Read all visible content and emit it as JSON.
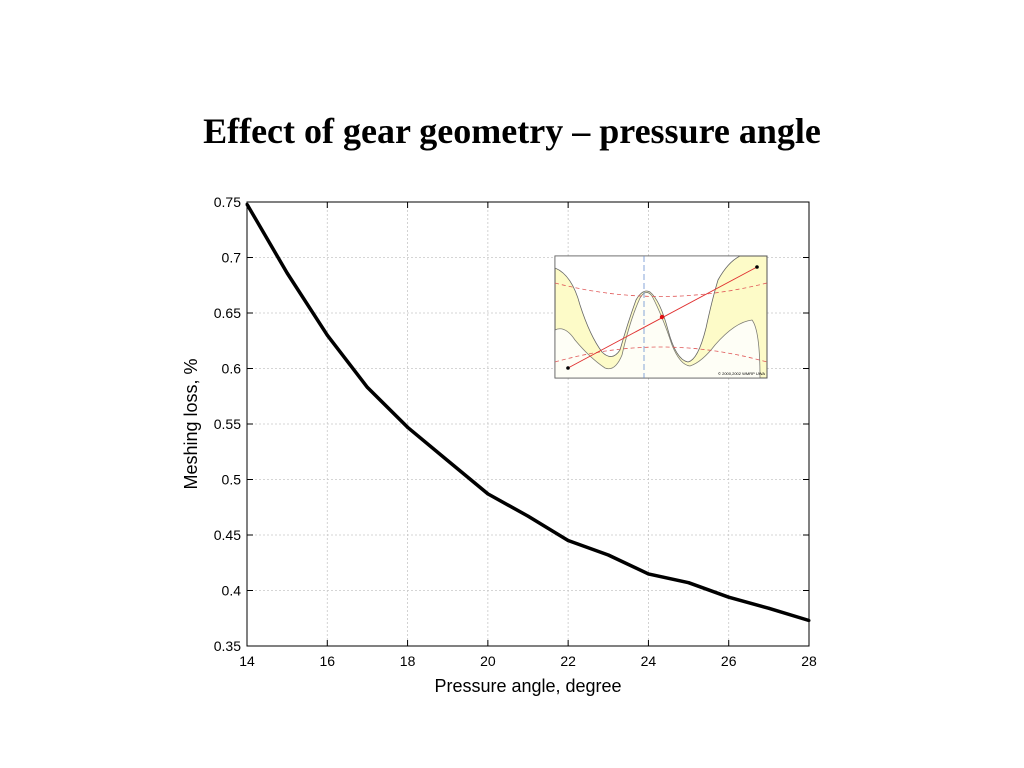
{
  "slide": {
    "title": "Effect of gear geometry – pressure angle"
  },
  "chart_data": {
    "type": "line",
    "xlabel": "Pressure angle, degree",
    "ylabel": "Meshing loss, %",
    "xlim": [
      14,
      28
    ],
    "ylim": [
      0.35,
      0.75
    ],
    "xticks": [
      "14",
      "16",
      "18",
      "20",
      "22",
      "24",
      "26",
      "28"
    ],
    "yticks": [
      "0.35",
      "0.4",
      "0.45",
      "0.5",
      "0.55",
      "0.6",
      "0.65",
      "0.7",
      "0.75"
    ],
    "grid": true,
    "series": [
      {
        "color": "#000000",
        "x": [
          14,
          15,
          16,
          17,
          18,
          19,
          20,
          21,
          22,
          23,
          24,
          25,
          26,
          27,
          28
        ],
        "y": [
          0.748,
          0.686,
          0.63,
          0.583,
          0.547,
          0.517,
          0.487,
          0.467,
          0.445,
          0.432,
          0.415,
          0.407,
          0.394,
          0.384,
          0.373
        ]
      }
    ]
  },
  "inset": {
    "description": "gear-mesh-diagram",
    "background": "#fdfbc8",
    "copyright": "© 2000,2002 WMRP UWA"
  }
}
